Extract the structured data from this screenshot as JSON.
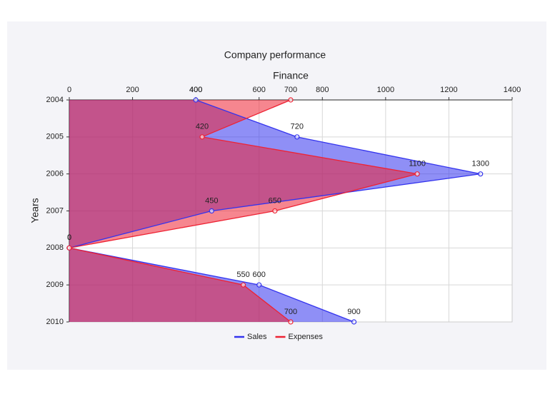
{
  "chart_data": {
    "type": "area",
    "orientation": "horizontal",
    "title": "Company performance",
    "x_label": "Finance",
    "y_label": "Years",
    "categories": [
      "2004",
      "2005",
      "2006",
      "2007",
      "2008",
      "2009",
      "2010"
    ],
    "series": [
      {
        "name": "Sales",
        "color": "#3333ee",
        "values": [
          400,
          720,
          1300,
          450,
          0,
          600,
          900
        ]
      },
      {
        "name": "Expenses",
        "color": "#ee2233",
        "values": [
          700,
          420,
          1100,
          650,
          0,
          550,
          700
        ]
      }
    ],
    "xlim": [
      0,
      1400
    ],
    "xticks": [
      0,
      200,
      400,
      600,
      800,
      1000,
      1200,
      1400
    ],
    "grid": true,
    "legend": "bottom"
  }
}
